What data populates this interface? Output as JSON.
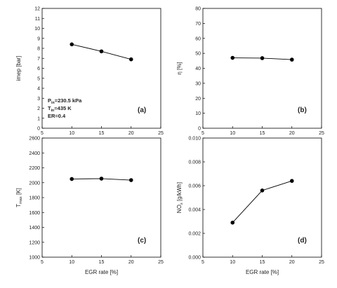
{
  "annotations": [
    "P_in=230.5 kPa",
    "T_in=435 K",
    "ER=0.4"
  ],
  "chart_data": [
    {
      "type": "line",
      "panel": "(a)",
      "xlabel": "",
      "ylabel": "imep [bar]",
      "xlim": [
        5,
        25
      ],
      "ylim": [
        0,
        12
      ],
      "xticks": [
        5,
        10,
        15,
        20,
        25
      ],
      "yticks": [
        0,
        1,
        2,
        3,
        4,
        5,
        6,
        7,
        8,
        9,
        10,
        11,
        12
      ],
      "x": [
        10,
        15,
        20
      ],
      "y": [
        8.4,
        7.7,
        6.9
      ]
    },
    {
      "type": "line",
      "panel": "(b)",
      "xlabel": "",
      "ylabel": "η [%]",
      "xlim": [
        5,
        25
      ],
      "ylim": [
        0,
        80
      ],
      "xticks": [
        5,
        10,
        15,
        20,
        25
      ],
      "yticks": [
        0,
        10,
        20,
        30,
        40,
        50,
        60,
        70,
        80
      ],
      "x": [
        10,
        15,
        20
      ],
      "y": [
        47,
        46.8,
        45.8
      ]
    },
    {
      "type": "line",
      "panel": "(c)",
      "xlabel": "EGR rate [%]",
      "ylabel": "T_max [K]",
      "xlim": [
        5,
        25
      ],
      "ylim": [
        1000,
        2600
      ],
      "xticks": [
        5,
        10,
        15,
        20,
        25
      ],
      "yticks": [
        1000,
        1200,
        1400,
        1600,
        1800,
        2000,
        2200,
        2400,
        2600
      ],
      "x": [
        10,
        15,
        20
      ],
      "y": [
        2050,
        2055,
        2035
      ]
    },
    {
      "type": "line",
      "panel": "(d)",
      "xlabel": "EGR rate [%]",
      "ylabel": "NO_x [g/kWh]",
      "xlim": [
        5,
        25
      ],
      "ylim": [
        0,
        0.01
      ],
      "xticks": [
        5,
        10,
        15,
        20,
        25
      ],
      "yticks": [
        "0.000",
        "0.002",
        "0.004",
        "0.006",
        "0.008",
        "0.010"
      ],
      "x": [
        10,
        15,
        20
      ],
      "y": [
        0.0029,
        0.0056,
        0.0064
      ]
    }
  ]
}
